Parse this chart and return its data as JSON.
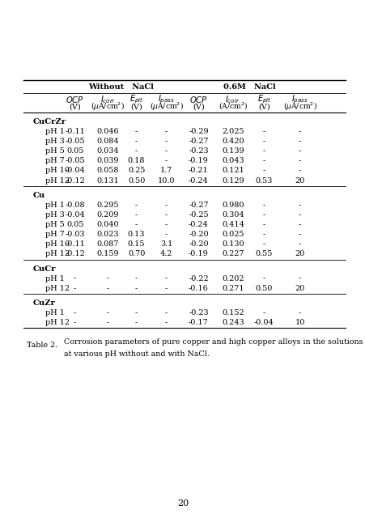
{
  "caption_label": "Table 2.",
  "caption_line1": "Corrosion parameters of pure copper and high copper alloys in the solutions",
  "caption_line2": "at various pH without and with NaCl.",
  "page_number": "20",
  "background_color": "#ffffff",
  "sections": [
    {
      "name": "CuCrZr",
      "rows": [
        [
          "pH 1",
          "-0.11",
          "0.046",
          "-",
          "-",
          "-0.29",
          "2.025",
          "-",
          "-"
        ],
        [
          "pH 3",
          "-0.05",
          "0.084",
          "-",
          "-",
          "-0.27",
          "0.420",
          "-",
          "-"
        ],
        [
          "pH 5",
          "0.05",
          "0.034",
          "-",
          "-",
          "-0.23",
          "0.139",
          "-",
          "-"
        ],
        [
          "pH 7",
          "-0.05",
          "0.039",
          "0.18",
          "-",
          "-0.19",
          "0.043",
          "-",
          "-"
        ],
        [
          "pH 10",
          "-0.04",
          "0.058",
          "0.25",
          "1.7",
          "-0.21",
          "0.121",
          "-",
          "-"
        ],
        [
          "pH 12",
          "-0.12",
          "0.131",
          "0.50",
          "10.0",
          "-0.24",
          "0.129",
          "0.53",
          "20"
        ]
      ]
    },
    {
      "name": "Cu",
      "rows": [
        [
          "pH 1",
          "-0.08",
          "0.295",
          "-",
          "-",
          "-0.27",
          "0.980",
          "-",
          "-"
        ],
        [
          "pH 3",
          "-0.04",
          "0.209",
          "-",
          "-",
          "-0.25",
          "0.304",
          "-",
          "-"
        ],
        [
          "pH 5",
          "0.05",
          "0.040",
          "-",
          "-",
          "-0.24",
          "0.414",
          "-",
          "-"
        ],
        [
          "pH 7",
          "-0.03",
          "0.023",
          "0.13",
          "-",
          "-0.20",
          "0.025",
          "-",
          "-"
        ],
        [
          "pH 10",
          "-0.11",
          "0.087",
          "0.15",
          "3.1",
          "-0.20",
          "0.130",
          "-",
          "-"
        ],
        [
          "pH 12",
          "-0.12",
          "0.159",
          "0.70",
          "4.2",
          "-0.19",
          "0.227",
          "0.55",
          "20"
        ]
      ]
    },
    {
      "name": "CuCr",
      "rows": [
        [
          "pH 1",
          "-",
          "-",
          "-",
          "-",
          "-0.22",
          "0.202",
          "-",
          "-"
        ],
        [
          "pH 12",
          "-",
          "-",
          "-",
          "-",
          "-0.16",
          "0.271",
          "0.50",
          "20"
        ]
      ]
    },
    {
      "name": "CuZr",
      "rows": [
        [
          "pH 1",
          "-",
          "-",
          "-",
          "-",
          "-0.23",
          "0.152",
          "-",
          "-"
        ],
        [
          "pH 12",
          "-",
          "-",
          "-",
          "-",
          "-0.17",
          "0.243",
          "-0.04",
          "10"
        ]
      ]
    }
  ]
}
